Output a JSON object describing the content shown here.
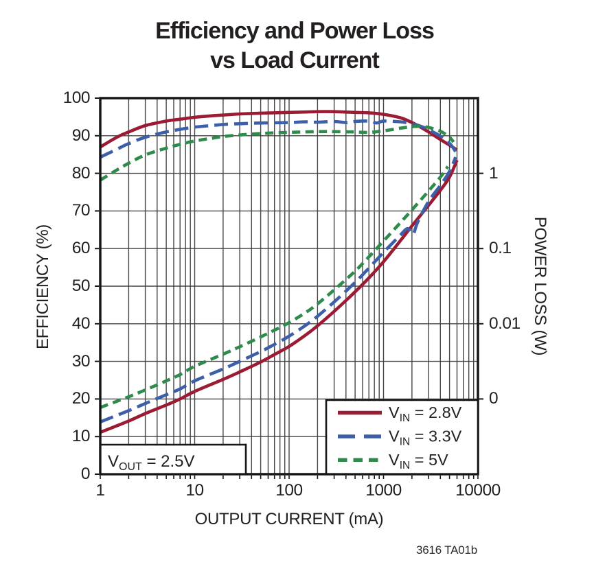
{
  "title": {
    "line1": "Efficiency and Power Loss",
    "line2": "vs Load Current"
  },
  "watermark": "3616 TA01b",
  "annotation": {
    "pre": "V",
    "sub": "OUT",
    "post": " = 2.5V"
  },
  "chart_data": {
    "type": "line",
    "title": "Efficiency and Power Loss vs Load Current",
    "xlabel": "OUTPUT CURRENT (mA)",
    "x_axis": {
      "scale": "log",
      "min": 1,
      "max": 10000,
      "ticks": [
        "1",
        "10",
        "100",
        "1000",
        "10000"
      ]
    },
    "y_axis_left": {
      "label": "EFFICIENCY (%)",
      "min": 0,
      "max": 100,
      "ticks": [
        "100",
        "90",
        "80",
        "70",
        "60",
        "50",
        "40",
        "30",
        "20",
        "10",
        "0"
      ]
    },
    "y_axis_right": {
      "label": "POWER LOSS (W)",
      "scale": "log",
      "ticks": [
        "1",
        "0.1",
        "0.01",
        "0"
      ],
      "tick_positions_efficiency": [
        80,
        60,
        40,
        20
      ]
    },
    "grid": true,
    "legend_position": "bottom-right",
    "colors": {
      "vin_2_8": "#9b1b33",
      "vin_3_3": "#3d5fa9",
      "vin_5": "#2e8b4c"
    },
    "legend": [
      {
        "pre": "V",
        "sub": "IN",
        "post": " = 2.8V",
        "color": "#9b1b33",
        "dash": "solid"
      },
      {
        "pre": "V",
        "sub": "IN",
        "post": " = 3.3V",
        "color": "#3d5fa9",
        "dash": "long"
      },
      {
        "pre": "V",
        "sub": "IN",
        "post": " = 5V",
        "color": "#2e8b4c",
        "dash": "short"
      }
    ],
    "efficiency_series": [
      {
        "name": "VIN = 2.8V",
        "color": "#9b1b33",
        "dash": "solid",
        "points": [
          [
            1,
            87
          ],
          [
            1.5,
            89.6
          ],
          [
            2,
            91
          ],
          [
            3,
            92.7
          ],
          [
            5,
            93.9
          ],
          [
            7,
            94.4
          ],
          [
            10,
            94.9
          ],
          [
            15,
            95.3
          ],
          [
            20,
            95.5
          ],
          [
            30,
            95.8
          ],
          [
            50,
            96
          ],
          [
            100,
            96.2
          ],
          [
            200,
            96.4
          ],
          [
            300,
            96.4
          ],
          [
            500,
            96.2
          ],
          [
            700,
            96.1
          ],
          [
            1000,
            95.7
          ],
          [
            1500,
            94.8
          ],
          [
            2000,
            93.5
          ],
          [
            2500,
            92.2
          ],
          [
            3000,
            91
          ],
          [
            4000,
            89
          ],
          [
            5000,
            87.5
          ],
          [
            6000,
            86.2
          ]
        ]
      },
      {
        "name": "VIN = 3.3V",
        "color": "#3d5fa9",
        "dash": "long",
        "points": [
          [
            1,
            84.3
          ],
          [
            1.5,
            86.4
          ],
          [
            2,
            87.9
          ],
          [
            3,
            89.6
          ],
          [
            5,
            91
          ],
          [
            7,
            91.7
          ],
          [
            10,
            92.3
          ],
          [
            15,
            92.7
          ],
          [
            20,
            93
          ],
          [
            30,
            93.2
          ],
          [
            50,
            93.4
          ],
          [
            100,
            93.5
          ],
          [
            150,
            93.7
          ],
          [
            200,
            93.6
          ],
          [
            300,
            93.8
          ],
          [
            400,
            93.5
          ],
          [
            500,
            93.8
          ],
          [
            700,
            93.9
          ],
          [
            850,
            93.4
          ],
          [
            1000,
            93.9
          ],
          [
            1500,
            93.7
          ],
          [
            2000,
            93.2
          ],
          [
            2500,
            92.5
          ],
          [
            3000,
            91.6
          ],
          [
            4000,
            89.9
          ],
          [
            5000,
            88
          ],
          [
            5800,
            85.8
          ]
        ]
      },
      {
        "name": "VIN = 5V",
        "color": "#2e8b4c",
        "dash": "short",
        "points": [
          [
            1,
            78.2
          ],
          [
            1.5,
            80.9
          ],
          [
            2,
            82.7
          ],
          [
            3,
            84.9
          ],
          [
            5,
            86.7
          ],
          [
            7,
            87.7
          ],
          [
            10,
            88.6
          ],
          [
            15,
            89.3
          ],
          [
            20,
            89.8
          ],
          [
            30,
            90.2
          ],
          [
            50,
            90.6
          ],
          [
            100,
            90.9
          ],
          [
            200,
            91.1
          ],
          [
            300,
            91.1
          ],
          [
            500,
            91
          ],
          [
            700,
            90.9
          ],
          [
            1000,
            91.3
          ],
          [
            1500,
            92
          ],
          [
            2000,
            92.4
          ],
          [
            2500,
            92.5
          ],
          [
            3000,
            92.2
          ],
          [
            4000,
            91.2
          ],
          [
            5000,
            89.6
          ],
          [
            5500,
            88.3
          ]
        ]
      }
    ],
    "power_loss_series": [
      {
        "name": "VIN = 2.8V",
        "color": "#9b1b33",
        "dash": "solid",
        "points": [
          [
            1,
            0.00036
          ],
          [
            2,
            0.00051
          ],
          [
            3,
            0.00064
          ],
          [
            5,
            0.00083
          ],
          [
            7,
            0.001
          ],
          [
            10,
            0.00126
          ],
          [
            20,
            0.00182
          ],
          [
            30,
            0.00229
          ],
          [
            50,
            0.0031
          ],
          [
            70,
            0.0039
          ],
          [
            100,
            0.005
          ],
          [
            150,
            0.0071
          ],
          [
            200,
            0.0094
          ],
          [
            300,
            0.0146
          ],
          [
            500,
            0.0266
          ],
          [
            700,
            0.0407
          ],
          [
            1000,
            0.0668
          ],
          [
            1500,
            0.126
          ],
          [
            2000,
            0.2
          ],
          [
            3000,
            0.376
          ],
          [
            4000,
            0.596
          ],
          [
            5000,
            0.891
          ],
          [
            6000,
            1.5
          ]
        ]
      },
      {
        "name": "VIN = 3.3V",
        "color": "#3d5fa9",
        "dash": "long",
        "points": [
          [
            1,
            0.000495
          ],
          [
            2,
            0.0007
          ],
          [
            3,
            0.00087
          ],
          [
            5,
            0.00114
          ],
          [
            7,
            0.00136
          ],
          [
            10,
            0.00174
          ],
          [
            20,
            0.00251
          ],
          [
            30,
            0.00316
          ],
          [
            50,
            0.00427
          ],
          [
            70,
            0.00531
          ],
          [
            100,
            0.00684
          ],
          [
            150,
            0.00955
          ],
          [
            200,
            0.0126
          ],
          [
            300,
            0.0195
          ],
          [
            500,
            0.0355
          ],
          [
            700,
            0.055
          ],
          [
            1000,
            0.0891
          ],
          [
            1500,
            0.15
          ],
          [
            1800,
            0.184
          ],
          [
            2050,
            0.155
          ],
          [
            2300,
            0.224
          ],
          [
            3000,
            0.422
          ],
          [
            4000,
            0.692
          ],
          [
            5000,
            1.059
          ],
          [
            5800,
            1.641
          ]
        ]
      },
      {
        "name": "VIN = 5V",
        "color": "#2e8b4c",
        "dash": "short",
        "points": [
          [
            1,
            0.00077
          ],
          [
            2,
            0.00107
          ],
          [
            3,
            0.00132
          ],
          [
            5,
            0.00174
          ],
          [
            7,
            0.00211
          ],
          [
            10,
            0.00272
          ],
          [
            20,
            0.00394
          ],
          [
            30,
            0.00495
          ],
          [
            50,
            0.00668
          ],
          [
            70,
            0.00822
          ],
          [
            100,
            0.01035
          ],
          [
            150,
            0.0141
          ],
          [
            200,
            0.0184
          ],
          [
            300,
            0.0282
          ],
          [
            500,
            0.0501
          ],
          [
            700,
            0.0776
          ],
          [
            1000,
            0.126
          ],
          [
            1500,
            0.219
          ],
          [
            2000,
            0.327
          ],
          [
            3000,
            0.582
          ],
          [
            4000,
            0.891
          ],
          [
            4800,
            1.23
          ]
        ]
      }
    ]
  }
}
